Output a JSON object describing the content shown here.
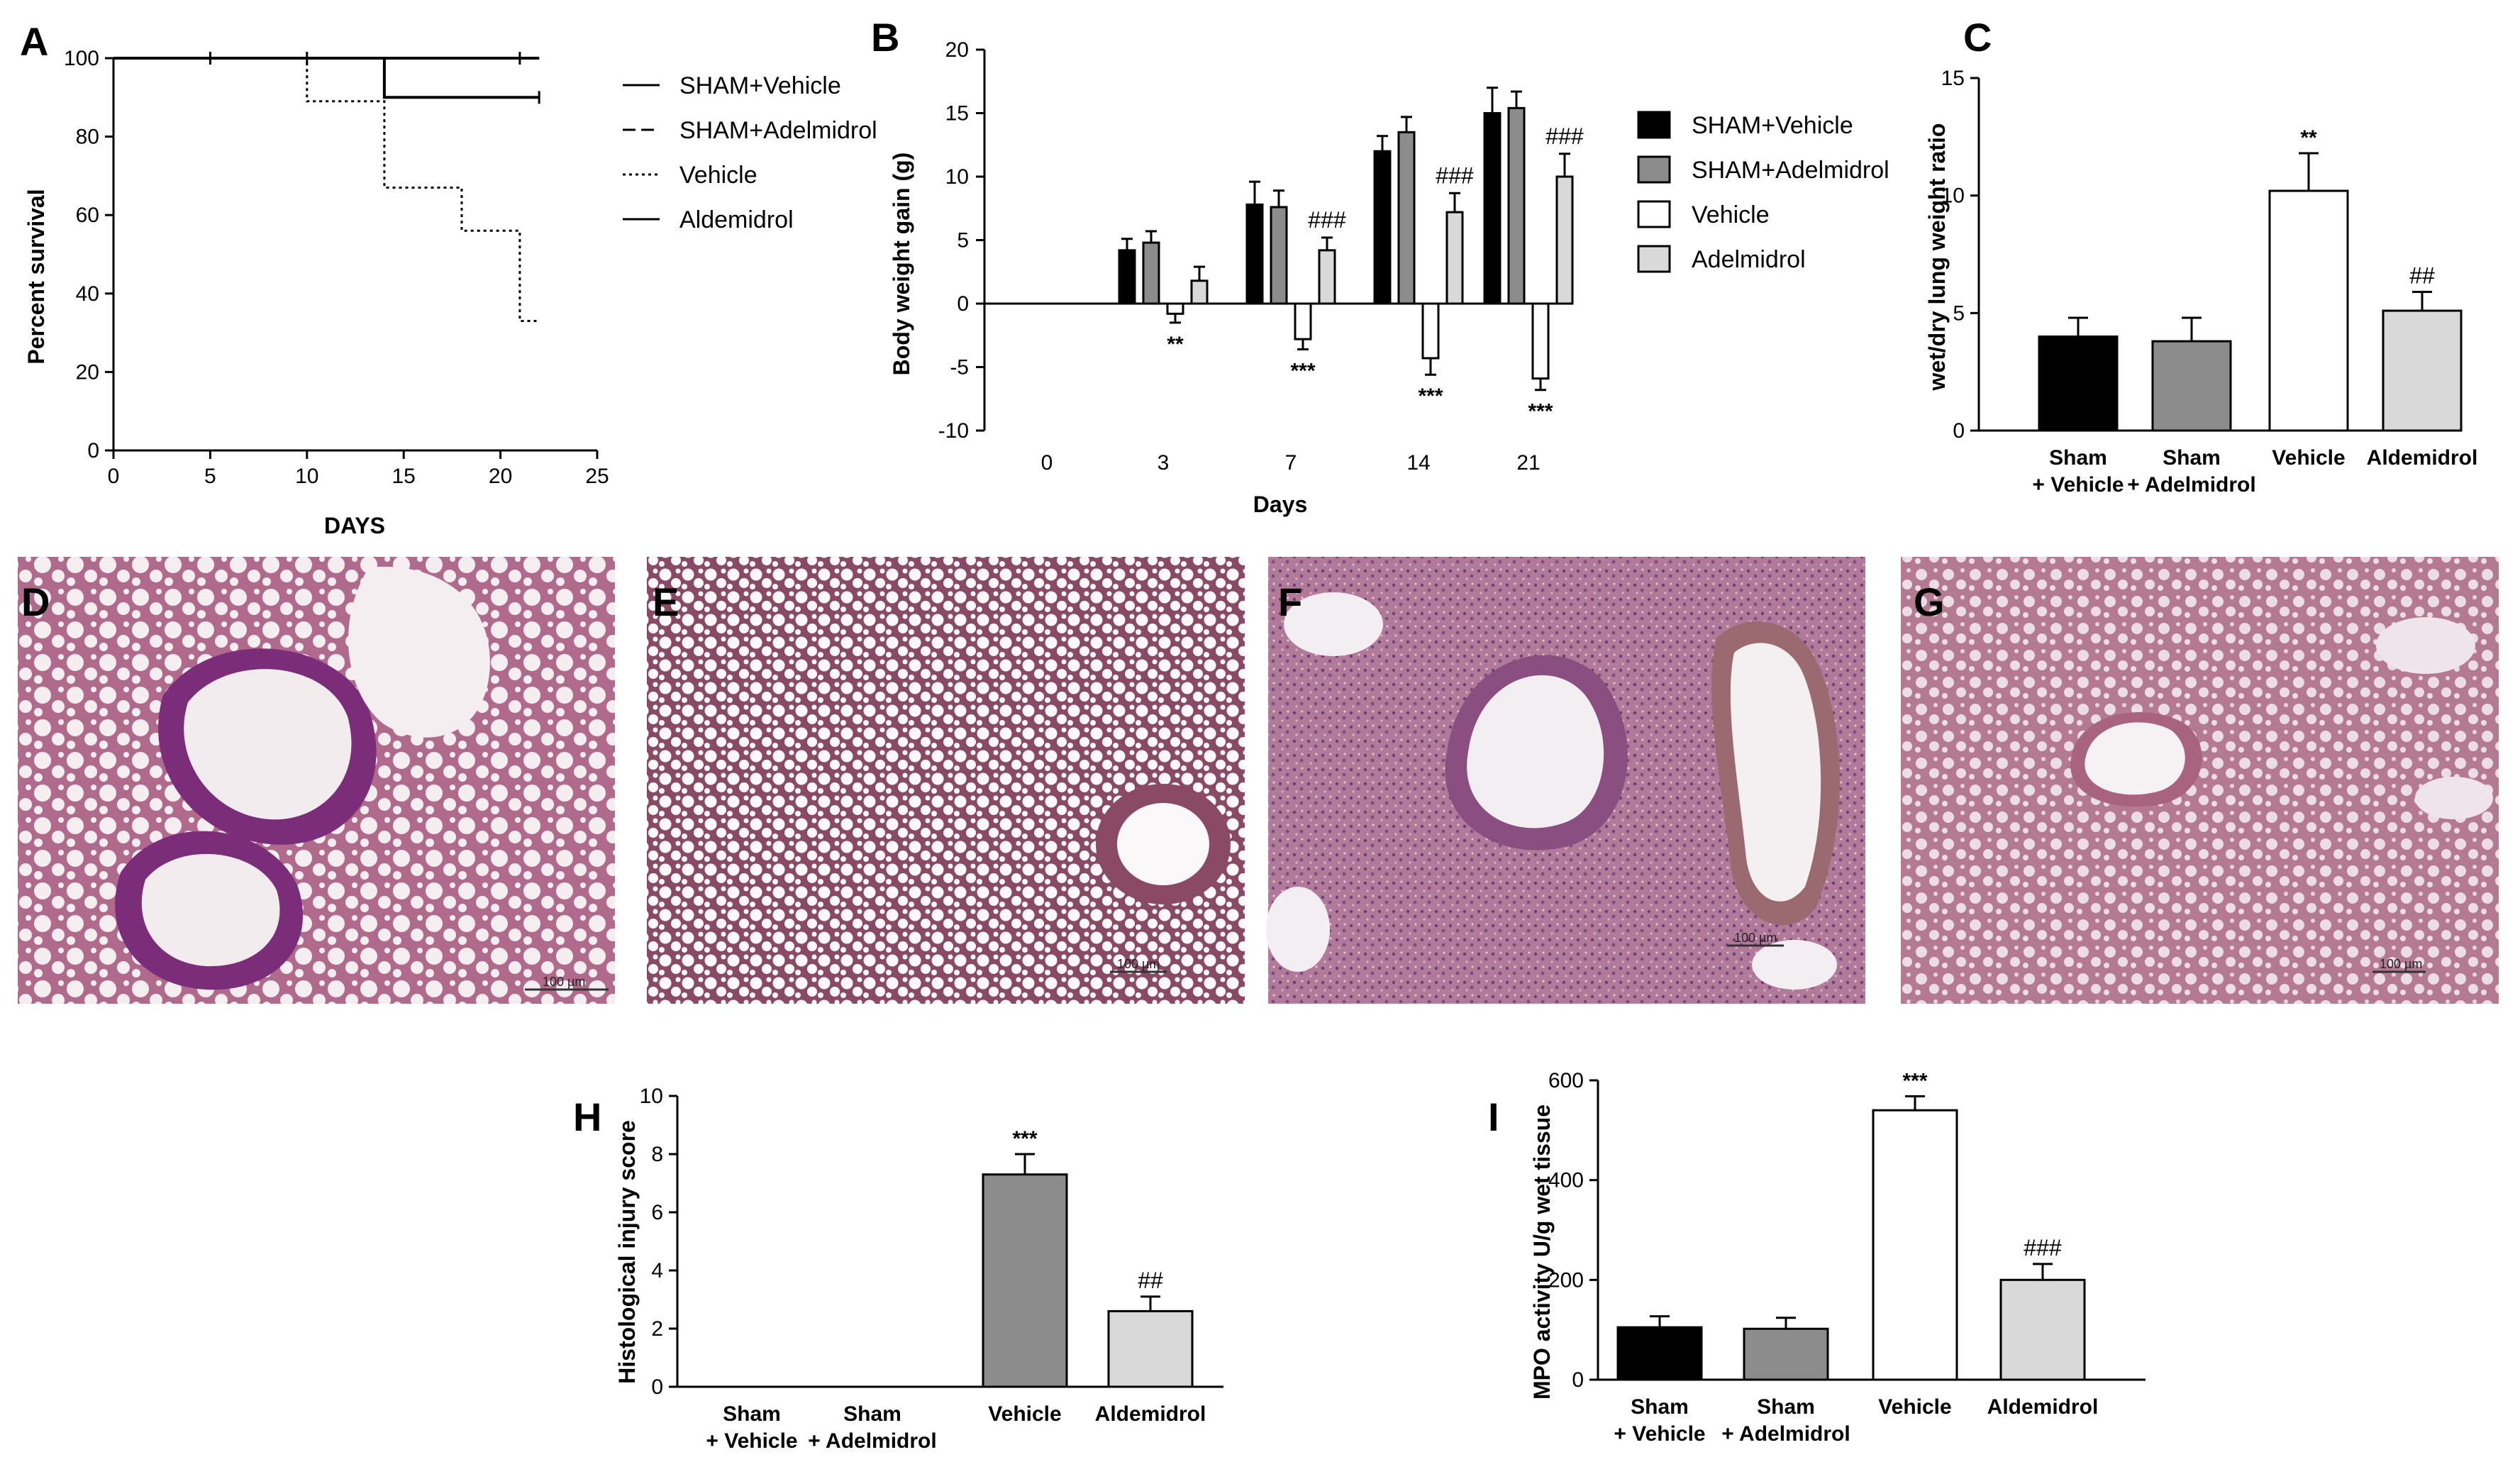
{
  "figure": {
    "colors": {
      "black": "#000000",
      "dark_gray": "#8c8c8c",
      "white": "#ffffff",
      "light_gray": "#d9d9d9",
      "tissue_pink": "#c98aa8",
      "tissue_purple": "#7a2a78"
    }
  },
  "chart_data": [
    {
      "id": "A",
      "panel_label": "A",
      "type": "line",
      "xlabel": "DAYS",
      "ylabel": "Percent survival",
      "xlim": [
        0,
        25
      ],
      "ylim": [
        0,
        100
      ],
      "x_ticks": [
        "0",
        "5",
        "10",
        "15",
        "20",
        "25"
      ],
      "y_ticks": [
        "0",
        "20",
        "40",
        "60",
        "80",
        "100"
      ],
      "legend": [
        "SHAM+Vehicle",
        "SHAM+Adelmidrol",
        "Vehicle",
        "Aldemidrol"
      ],
      "legend_position": "right",
      "series": [
        {
          "name": "SHAM+Vehicle",
          "style": "solid",
          "steps": [
            [
              0,
              100
            ],
            [
              22,
              100
            ]
          ]
        },
        {
          "name": "SHAM+Adelmidrol",
          "style": "dashed",
          "steps": [
            [
              0,
              100
            ],
            [
              22,
              100
            ]
          ]
        },
        {
          "name": "Vehicle",
          "style": "dotted",
          "steps": [
            [
              0,
              100
            ],
            [
              10,
              100
            ],
            [
              10,
              89
            ],
            [
              14,
              89
            ],
            [
              14,
              67
            ],
            [
              18,
              67
            ],
            [
              18,
              56
            ],
            [
              21,
              56
            ],
            [
              21,
              33
            ],
            [
              22,
              33
            ]
          ]
        },
        {
          "name": "Aldemidrol",
          "style": "solid",
          "steps": [
            [
              0,
              100
            ],
            [
              14,
              100
            ],
            [
              14,
              90
            ],
            [
              22,
              90
            ]
          ]
        }
      ]
    },
    {
      "id": "B",
      "panel_label": "B",
      "type": "bar",
      "xlabel": "Days",
      "ylabel": "Body weight gain (g)",
      "ylim": [
        -10,
        20
      ],
      "y_ticks": [
        "-10",
        "-5",
        "0",
        "5",
        "10",
        "15",
        "20"
      ],
      "categories": [
        "0",
        "3",
        "7",
        "14",
        "21"
      ],
      "legend_position": "right",
      "series": [
        {
          "name": "SHAM+Vehicle",
          "color": "#000000",
          "values": [
            0,
            4.2,
            7.8,
            12.0,
            15.0
          ],
          "errors": [
            0,
            0.9,
            1.8,
            1.2,
            2.0
          ]
        },
        {
          "name": "SHAM+Adelmidrol",
          "color": "#8c8c8c",
          "values": [
            0,
            4.8,
            7.6,
            13.5,
            15.4
          ],
          "errors": [
            0,
            0.9,
            1.3,
            1.2,
            1.3
          ]
        },
        {
          "name": "Vehicle",
          "color": "#ffffff",
          "values": [
            0,
            -0.8,
            -2.8,
            -4.3,
            -5.9
          ],
          "errors": [
            0,
            0.7,
            0.8,
            1.3,
            0.9
          ]
        },
        {
          "name": "Adelmidrol",
          "color": "#d9d9d9",
          "values": [
            0,
            1.8,
            4.2,
            7.2,
            10.0
          ],
          "errors": [
            0,
            1.1,
            1.0,
            1.5,
            1.8
          ]
        }
      ],
      "annotations": [
        {
          "category": "3",
          "series": "Vehicle",
          "text": "**",
          "pos": "below"
        },
        {
          "category": "7",
          "series": "Vehicle",
          "text": "***",
          "pos": "below"
        },
        {
          "category": "14",
          "series": "Vehicle",
          "text": "***",
          "pos": "below"
        },
        {
          "category": "21",
          "series": "Vehicle",
          "text": "***",
          "pos": "below"
        },
        {
          "category": "7",
          "series": "Adelmidrol",
          "text": "###",
          "pos": "above"
        },
        {
          "category": "14",
          "series": "Adelmidrol",
          "text": "###",
          "pos": "above"
        },
        {
          "category": "21",
          "series": "Adelmidrol",
          "text": "###",
          "pos": "above"
        }
      ]
    },
    {
      "id": "C",
      "panel_label": "C",
      "type": "bar",
      "ylabel": "wet/dry lung weight ratio",
      "ylim": [
        0,
        15
      ],
      "y_ticks": [
        "0",
        "5",
        "10",
        "15"
      ],
      "categories": [
        [
          "Sham",
          "+ Vehicle"
        ],
        [
          "Sham",
          "+ Adelmidrol"
        ],
        [
          "Vehicle"
        ],
        [
          "Aldemidrol"
        ]
      ],
      "values": [
        4.0,
        3.8,
        10.2,
        5.1
      ],
      "errors": [
        0.8,
        1.0,
        1.6,
        0.8
      ],
      "colors": [
        "#000000",
        "#8c8c8c",
        "#ffffff",
        "#d9d9d9"
      ],
      "annotations": [
        "",
        "",
        "**",
        "##"
      ]
    },
    {
      "id": "H",
      "panel_label": "H",
      "type": "bar",
      "ylabel": "Histological injury score",
      "ylim": [
        0,
        10
      ],
      "y_ticks": [
        "0",
        "2",
        "4",
        "6",
        "8",
        "10"
      ],
      "categories": [
        [
          "Sham",
          "+ Vehicle"
        ],
        [
          "Sham",
          "+ Adelmidrol"
        ],
        [
          "Vehicle"
        ],
        [
          "Aldemidrol"
        ]
      ],
      "values": [
        0,
        0,
        7.3,
        2.6
      ],
      "errors": [
        0,
        0,
        0.7,
        0.5
      ],
      "colors": [
        "#000000",
        "#8c8c8c",
        "#8c8c8c",
        "#d9d9d9"
      ],
      "annotations": [
        "",
        "",
        "***",
        "##"
      ]
    },
    {
      "id": "I",
      "panel_label": "I",
      "type": "bar",
      "ylabel": "MPO activity U/g wet tissue",
      "ylim": [
        0,
        600
      ],
      "y_ticks": [
        "0",
        "200",
        "400",
        "600"
      ],
      "categories": [
        [
          "Sham",
          "+ Vehicle"
        ],
        [
          "Sham",
          "+ Adelmidrol"
        ],
        [
          "Vehicle"
        ],
        [
          "Aldemidrol"
        ]
      ],
      "values": [
        105,
        102,
        540,
        200
      ],
      "errors": [
        22,
        22,
        28,
        32
      ],
      "colors": [
        "#000000",
        "#8c8c8c",
        "#ffffff",
        "#d9d9d9"
      ],
      "annotations": [
        "",
        "",
        "***",
        "###"
      ]
    }
  ],
  "micrographs": [
    {
      "label": "D",
      "scale_bar": "100 µm"
    },
    {
      "label": "E",
      "scale_bar": "100 µm"
    },
    {
      "label": "F",
      "scale_bar": "100 µm"
    },
    {
      "label": "G",
      "scale_bar": "100 µm"
    }
  ]
}
